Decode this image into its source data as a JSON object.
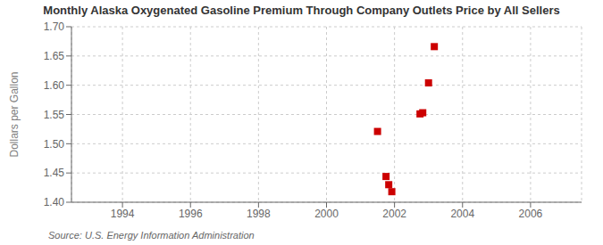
{
  "chart_data": {
    "type": "scatter",
    "title": "Monthly Alaska Oxygenated Gasoline Premium Through Company Outlets Price by All Sellers",
    "ylabel": "Dollars per Gallon",
    "annotations": [
      "Source: U.S. Energy Information Administration"
    ],
    "x": [
      2001.5,
      2001.75,
      2001.83,
      2001.92,
      2002.75,
      2002.83,
      2003.0,
      2003.17
    ],
    "values": [
      1.521,
      1.444,
      1.43,
      1.418,
      1.551,
      1.553,
      1.604,
      1.666
    ],
    "xlim": [
      1992.5,
      2007.5
    ],
    "ylim": [
      1.4,
      1.7
    ],
    "xticks": [
      1994,
      1996,
      1998,
      2000,
      2002,
      2004,
      2006
    ],
    "yticks": [
      {
        "value": 1.4,
        "label": "1.40"
      },
      1.45,
      {
        "value": 1.5,
        "label": "1.50"
      },
      1.55,
      {
        "value": 1.6,
        "label": "1.60"
      },
      1.65,
      {
        "value": 1.7,
        "label": "1.70"
      }
    ],
    "color": "#cc0000",
    "marker": "square",
    "grid": true
  }
}
